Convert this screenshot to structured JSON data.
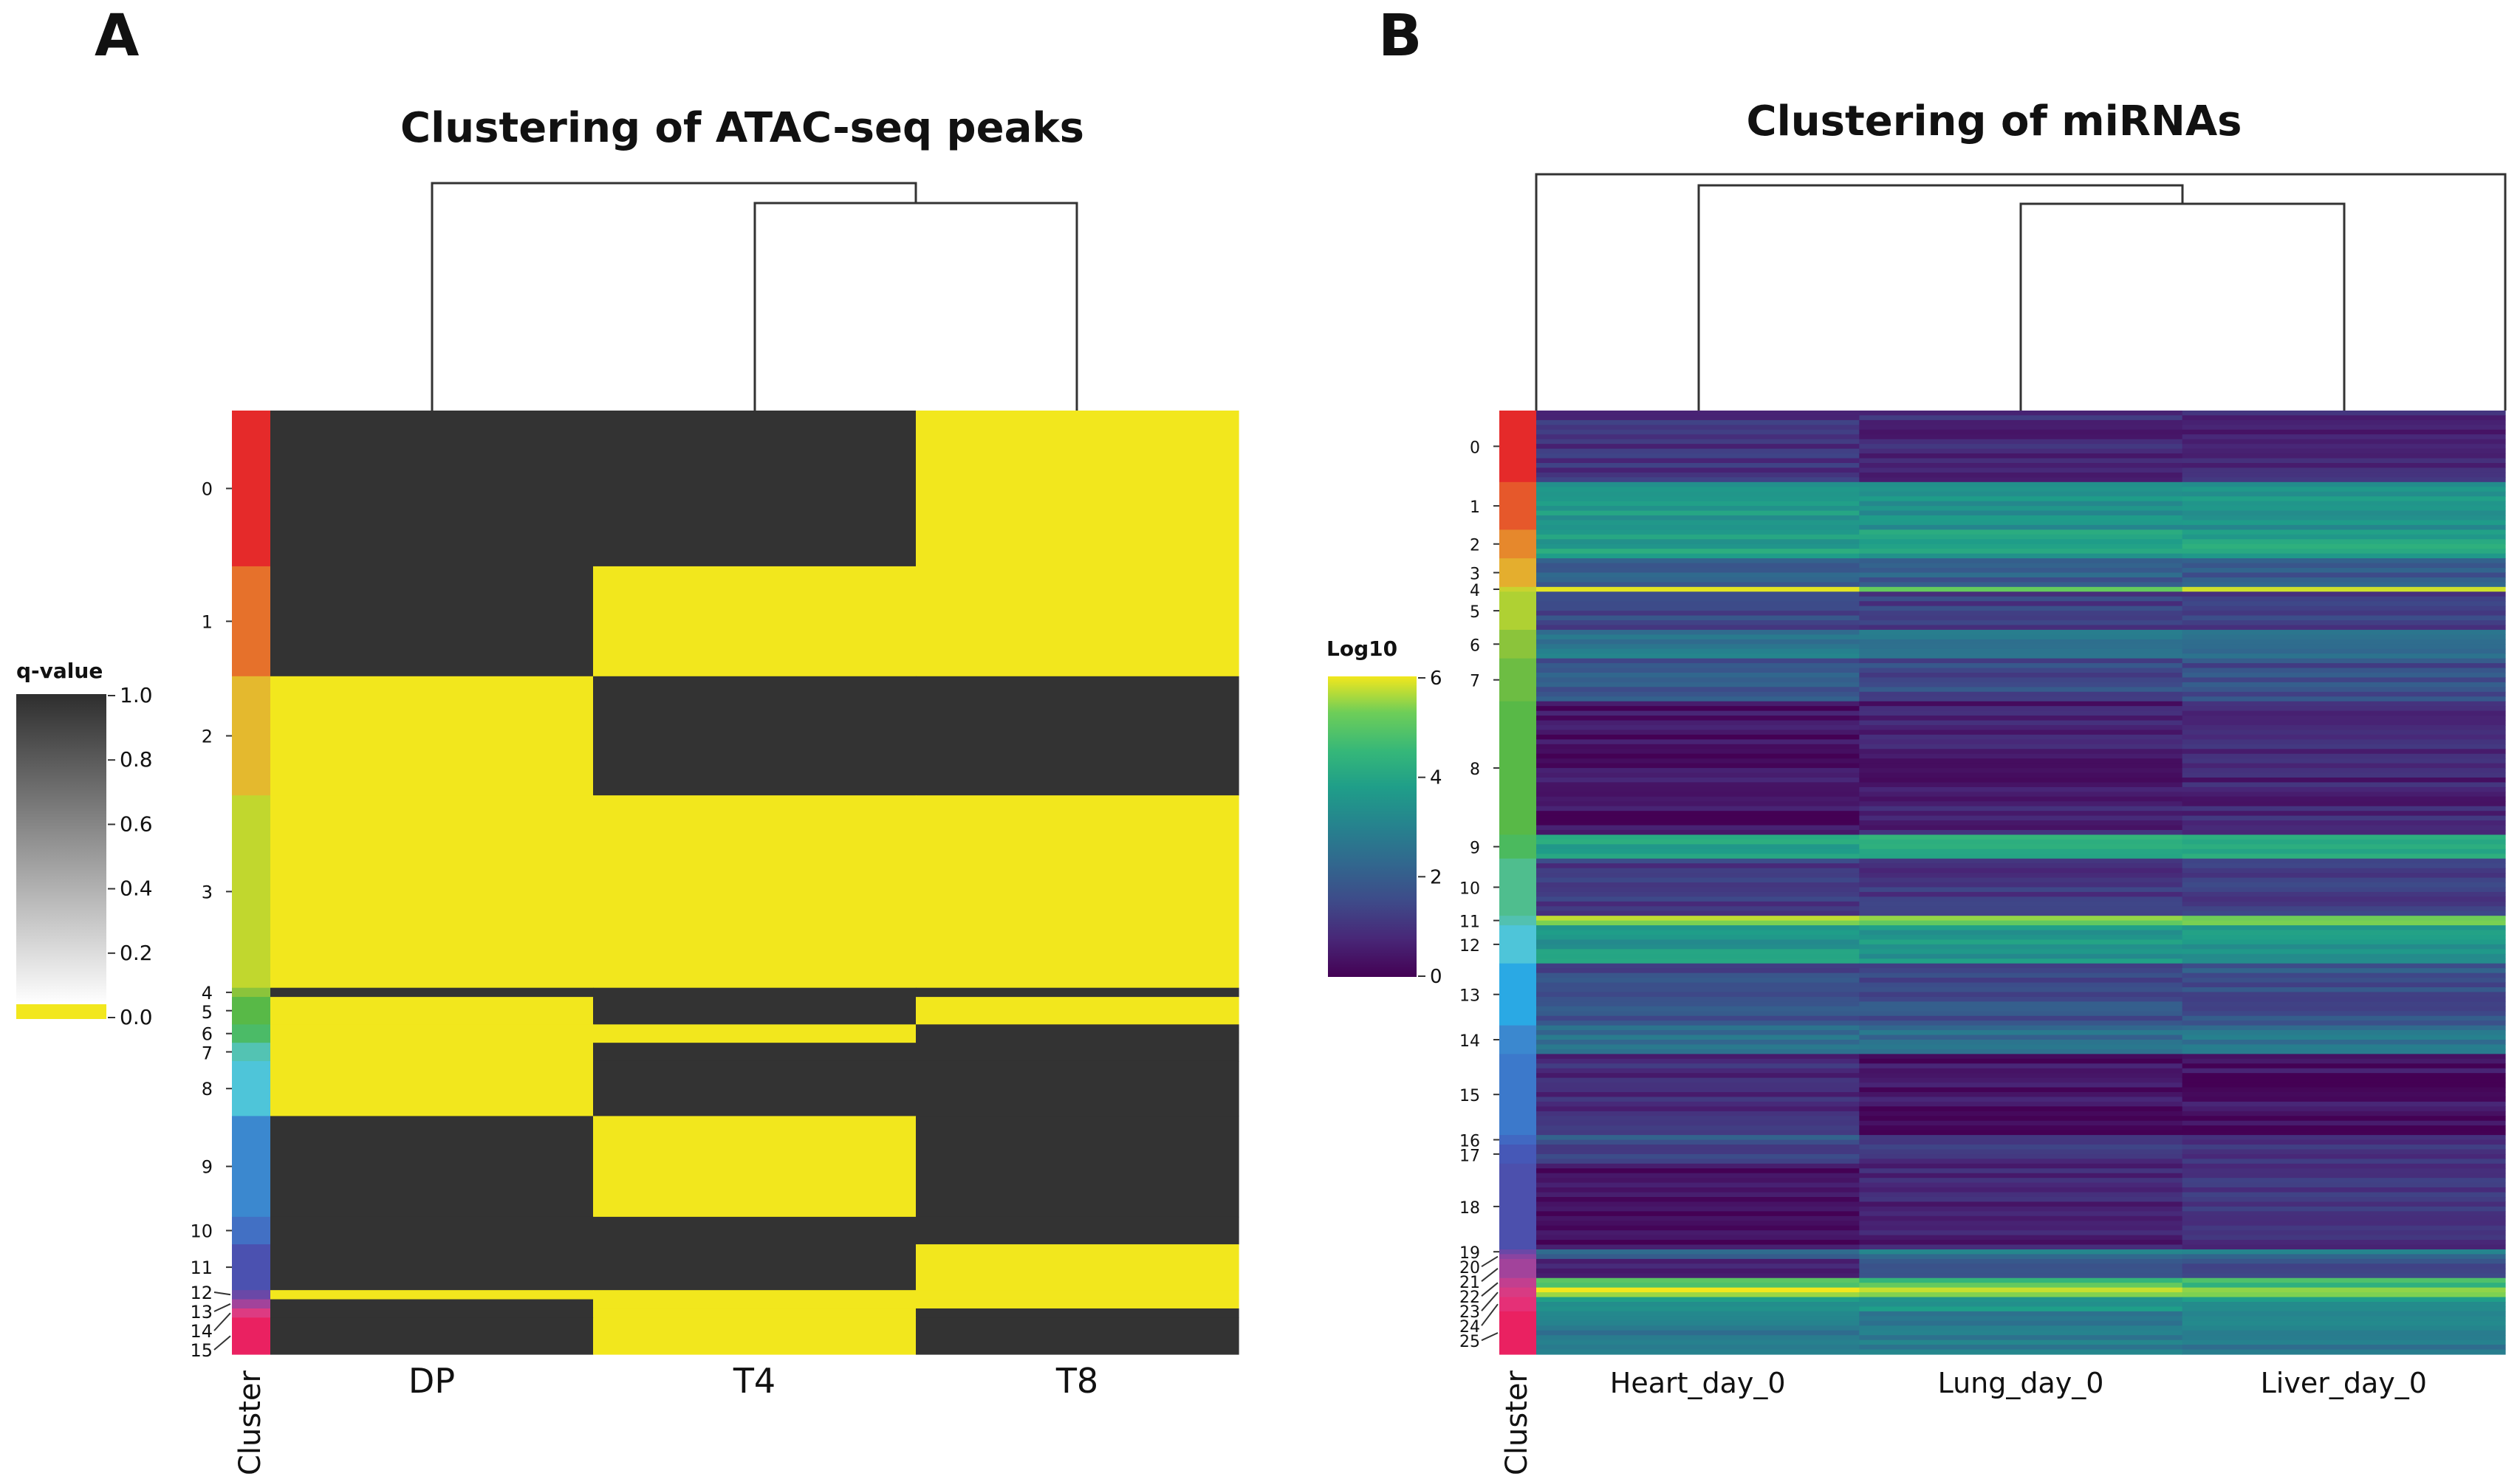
{
  "chart_data": [
    {
      "panel_label": "A",
      "type": "heatmap",
      "title": "Clustering of ATAC-seq peaks",
      "columns": [
        "DP",
        "T4",
        "T8"
      ],
      "cluster_axis_label": "Cluster",
      "colorbar": {
        "title": "q-value",
        "ticks": [
          "1.0",
          "0.8",
          "0.6",
          "0.4",
          "0.2",
          "0.0"
        ],
        "tick_values": [
          1.0,
          0.8,
          0.6,
          0.4,
          0.2,
          0.0
        ],
        "range": [
          0,
          1
        ]
      },
      "dendrogram": "((T4,T8),DP)",
      "clusters": [
        {
          "id": "0",
          "rows": 17,
          "values": [
            1,
            1,
            0
          ]
        },
        {
          "id": "1",
          "rows": 12,
          "values": [
            1,
            0,
            0
          ]
        },
        {
          "id": "2",
          "rows": 13,
          "values": [
            0,
            1,
            1
          ]
        },
        {
          "id": "3",
          "rows": 21,
          "values": [
            0,
            0,
            0
          ]
        },
        {
          "id": "4",
          "rows": 1,
          "values": [
            1,
            1,
            1
          ]
        },
        {
          "id": "5",
          "rows": 3,
          "values": [
            0,
            1,
            0
          ]
        },
        {
          "id": "6",
          "rows": 2,
          "values": [
            0,
            0,
            1
          ]
        },
        {
          "id": "7",
          "rows": 2,
          "values": [
            0,
            1,
            1
          ]
        },
        {
          "id": "8",
          "rows": 6,
          "values": [
            0,
            1,
            1
          ]
        },
        {
          "id": "9",
          "rows": 11,
          "values": [
            1,
            0,
            1
          ]
        },
        {
          "id": "10",
          "rows": 3,
          "values": [
            1,
            1,
            1
          ]
        },
        {
          "id": "11",
          "rows": 5,
          "values": [
            1,
            1,
            0
          ]
        },
        {
          "id": "12",
          "rows": 1,
          "values": [
            0,
            0,
            0
          ]
        },
        {
          "id": "13",
          "rows": 1,
          "values": [
            1,
            0,
            0
          ]
        },
        {
          "id": "14",
          "rows": 1,
          "values": [
            1,
            0,
            1
          ]
        },
        {
          "id": "15",
          "rows": 4,
          "values": [
            1,
            0,
            1
          ]
        }
      ],
      "cluster_colors": [
        "#e52a2a",
        "#e6712b",
        "#e4b92e",
        "#c1d72e",
        "#8bc43b",
        "#58b947",
        "#4bbb67",
        "#53c3b3",
        "#4ec5d9",
        "#3b88cf",
        "#4270c4",
        "#4b51b0",
        "#6a48a7",
        "#a2439b",
        "#dd3b82",
        "#ea2161"
      ],
      "colors": {
        "high": "#333333",
        "low": "#f2e71d"
      }
    },
    {
      "panel_label": "B",
      "type": "heatmap",
      "title": "Clustering of miRNAs",
      "columns": [
        "Heart_day_0",
        "Lung_day_0",
        "Liver_day_0"
      ],
      "cluster_axis_label": "Cluster",
      "colorbar": {
        "title": "Log10",
        "ticks": [
          "6",
          "4",
          "2",
          "0"
        ],
        "tick_values": [
          6,
          4,
          2,
          0
        ],
        "range": [
          0,
          6
        ]
      },
      "dendrogram": "(Heart_day_0,(Lung_day_0,Liver_day_0))",
      "clusters": [
        {
          "id": "0",
          "rows": 15,
          "values": [
            1.0,
            0.8,
            0.7
          ]
        },
        {
          "id": "1",
          "rows": 10,
          "values": [
            3.6,
            3.5,
            3.4
          ]
        },
        {
          "id": "2",
          "rows": 6,
          "values": [
            3.8,
            3.8,
            4.0
          ]
        },
        {
          "id": "3",
          "rows": 6,
          "values": [
            2.2,
            2.0,
            2.0
          ]
        },
        {
          "id": "4",
          "rows": 1,
          "values": [
            5.6,
            5.5,
            5.4
          ]
        },
        {
          "id": "5",
          "rows": 8,
          "values": [
            1.4,
            1.3,
            1.3
          ]
        },
        {
          "id": "6",
          "rows": 6,
          "values": [
            2.7,
            2.6,
            2.5
          ]
        },
        {
          "id": "7",
          "rows": 9,
          "values": [
            1.8,
            1.5,
            1.6
          ]
        },
        {
          "id": "8",
          "rows": 28,
          "values": [
            0.3,
            0.6,
            0.7
          ]
        },
        {
          "id": "9",
          "rows": 5,
          "values": [
            4.0,
            4.0,
            3.9
          ]
        },
        {
          "id": "10",
          "rows": 12,
          "values": [
            1.2,
            1.1,
            1.2
          ]
        },
        {
          "id": "11",
          "rows": 2,
          "values": [
            5.3,
            5.2,
            5.4
          ]
        },
        {
          "id": "12",
          "rows": 8,
          "values": [
            3.6,
            3.5,
            3.5
          ]
        },
        {
          "id": "13",
          "rows": 13,
          "values": [
            1.6,
            1.6,
            1.7
          ]
        },
        {
          "id": "14",
          "rows": 6,
          "values": [
            2.5,
            2.5,
            2.6
          ]
        },
        {
          "id": "15",
          "rows": 17,
          "values": [
            0.9,
            0.3,
            0.3
          ]
        },
        {
          "id": "16",
          "rows": 2,
          "values": [
            2.0,
            1.4,
            1.2
          ]
        },
        {
          "id": "17",
          "rows": 4,
          "values": [
            1.3,
            1.0,
            1.0
          ]
        },
        {
          "id": "18",
          "rows": 18,
          "values": [
            0.2,
            0.6,
            1.0
          ]
        },
        {
          "id": "19",
          "rows": 1,
          "values": [
            2.2,
            3.2,
            3.0
          ]
        },
        {
          "id": "20",
          "rows": 1,
          "values": [
            1.5,
            2.6,
            2.4
          ]
        },
        {
          "id": "21",
          "rows": 4,
          "values": [
            0.8,
            1.6,
            1.6
          ]
        },
        {
          "id": "22",
          "rows": 2,
          "values": [
            5.0,
            4.8,
            4.6
          ]
        },
        {
          "id": "23",
          "rows": 2,
          "values": [
            5.8,
            5.7,
            5.6
          ]
        },
        {
          "id": "24",
          "rows": 3,
          "values": [
            3.6,
            3.6,
            3.5
          ]
        },
        {
          "id": "25",
          "rows": 9,
          "values": [
            2.8,
            2.7,
            2.8
          ]
        }
      ],
      "cluster_colors": [
        "#e52a2a",
        "#e6582b",
        "#e6882c",
        "#e4ae2e",
        "#c9d32f",
        "#afd133",
        "#8bc43b",
        "#6dbd43",
        "#58b947",
        "#4bba5e",
        "#4fbe8e",
        "#52c1b0",
        "#4ec5d9",
        "#2aa9e4",
        "#3b88cf",
        "#3c79cb",
        "#4168c2",
        "#4658b7",
        "#4c50ad",
        "#6a48a7",
        "#8a44a1",
        "#a2439b",
        "#c23f8f",
        "#d83b83",
        "#e53077",
        "#ea2161"
      ]
    }
  ]
}
